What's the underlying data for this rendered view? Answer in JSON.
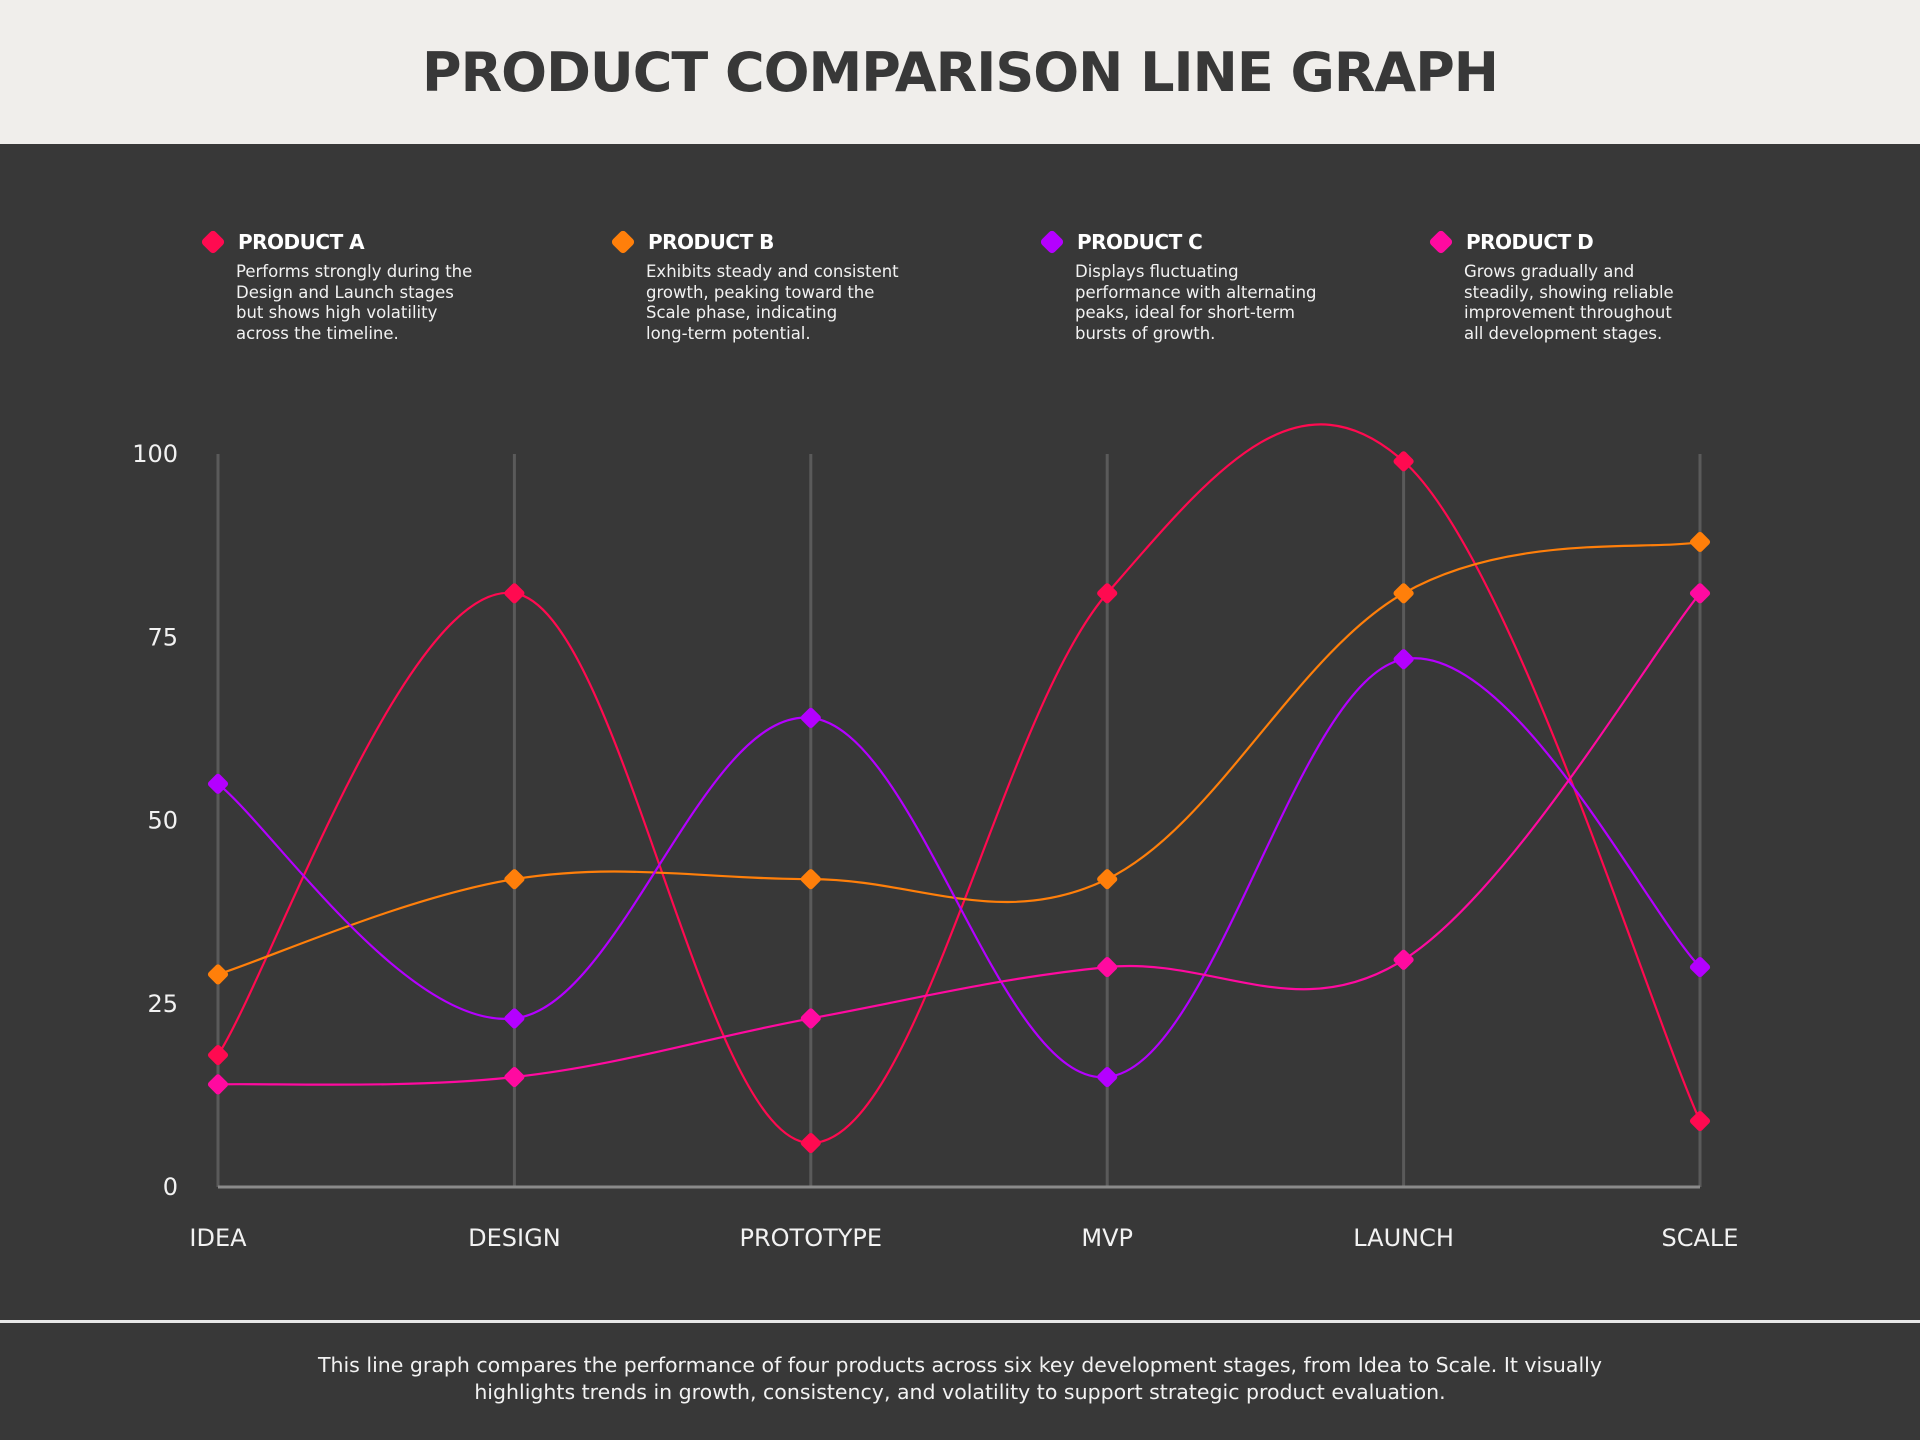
{
  "header": {
    "title": "PRODUCT COMPARISON LINE GRAPH"
  },
  "legend": [
    {
      "name": "PRODUCT A",
      "color": "#ff0a50",
      "description": "Performs strongly during the\nDesign and Launch stages\nbut shows high volatility\nacross the timeline."
    },
    {
      "name": "PRODUCT B",
      "color": "#ff7f0a",
      "description": "Exhibits steady and consistent\ngrowth, peaking toward the\nScale phase, indicating\nlong-term potential."
    },
    {
      "name": "PRODUCT C",
      "color": "#b400ff",
      "description": "Displays fluctuating\nperformance with alternating\npeaks, ideal for short-term\nbursts of growth."
    },
    {
      "name": "PRODUCT D",
      "color": "#ff0aa0",
      "description": "Grows gradually and\nsteadily, showing reliable\nimprovement throughout\nall development stages."
    }
  ],
  "chart_data": {
    "type": "line",
    "title": "PRODUCT COMPARISON LINE GRAPH",
    "categories": [
      "IDEA",
      "DESIGN",
      "PROTOTYPE",
      "MVP",
      "LAUNCH",
      "SCALE"
    ],
    "ylim": [
      0,
      100
    ],
    "yticks": [
      "0",
      "25",
      "50",
      "75",
      "100"
    ],
    "grid": "vertical",
    "smooth": true,
    "legend_position": "top",
    "series": [
      {
        "name": "PRODUCT A",
        "color": "#ff0a50",
        "values": [
          18,
          81,
          6,
          81,
          99,
          9
        ]
      },
      {
        "name": "PRODUCT B",
        "color": "#ff7f0a",
        "values": [
          29,
          42,
          42,
          42,
          81,
          88
        ]
      },
      {
        "name": "PRODUCT C",
        "color": "#b400ff",
        "values": [
          55,
          23,
          64,
          15,
          72,
          30
        ]
      },
      {
        "name": "PRODUCT D",
        "color": "#ff0aa0",
        "values": [
          14,
          15,
          23,
          30,
          31,
          81
        ]
      }
    ]
  },
  "footer": {
    "text": "This line graph compares the performance of four products across six key development stages, from Idea to Scale. It visually\nhighlights trends in growth, consistency, and volatility to support strategic product evaluation."
  }
}
